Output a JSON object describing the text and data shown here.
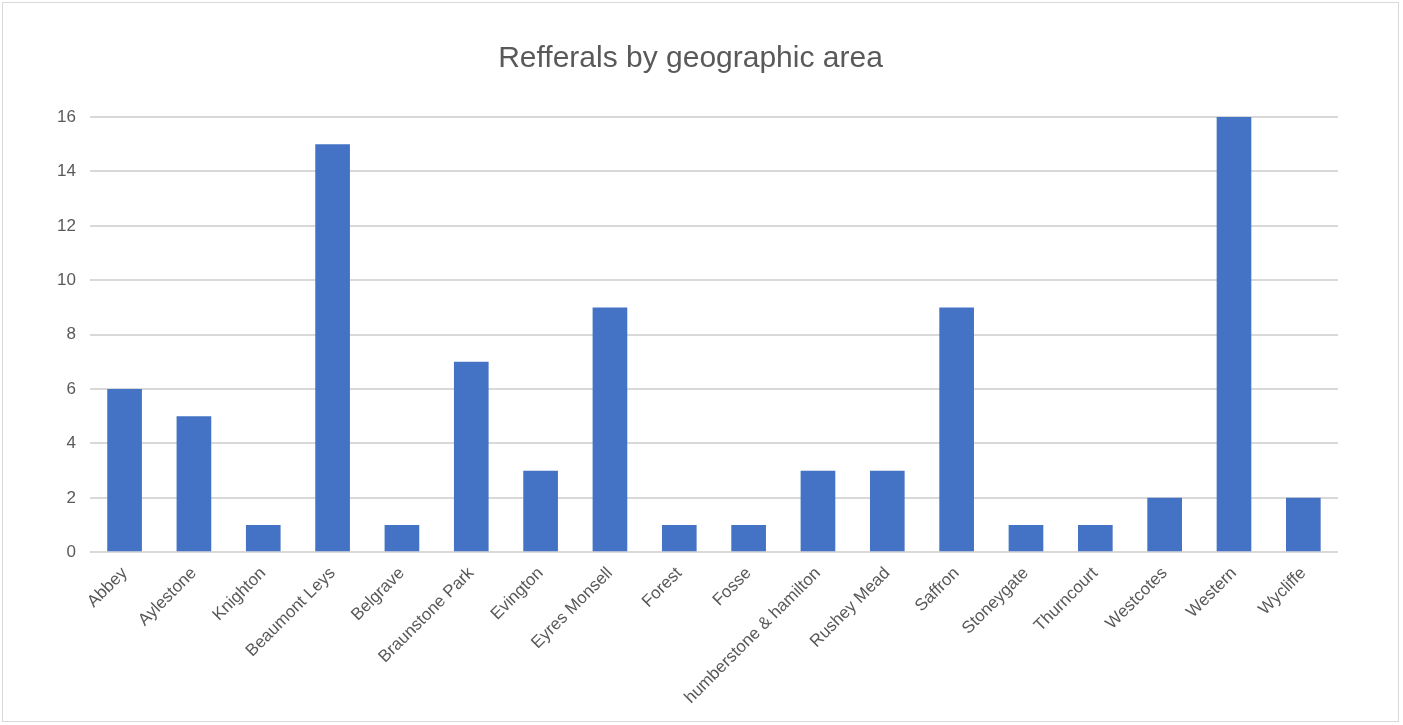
{
  "chart_data": {
    "type": "bar",
    "title": "Refferals by geographic area",
    "categories": [
      "Abbey",
      "Aylestone",
      "Knighton",
      "Beaumont Leys",
      "Belgrave",
      "Braunstone Park",
      "Evington",
      "Eyres Monsell",
      "Forest",
      "Fosse",
      "humberstone & hamilton",
      "Rushey Mead",
      "Saffron",
      "Stoneygate",
      "Thurncourt",
      "Westcotes",
      "Western",
      "Wycliffe"
    ],
    "values": [
      6,
      5,
      1,
      15,
      1,
      7,
      3,
      9,
      1,
      1,
      3,
      3,
      9,
      1,
      1,
      2,
      16,
      2
    ],
    "color": "#4472c4",
    "ylim": [
      0,
      16
    ],
    "yticks": [
      0,
      2,
      4,
      6,
      8,
      10,
      12,
      14,
      16
    ],
    "grid": "y",
    "legend": false
  }
}
